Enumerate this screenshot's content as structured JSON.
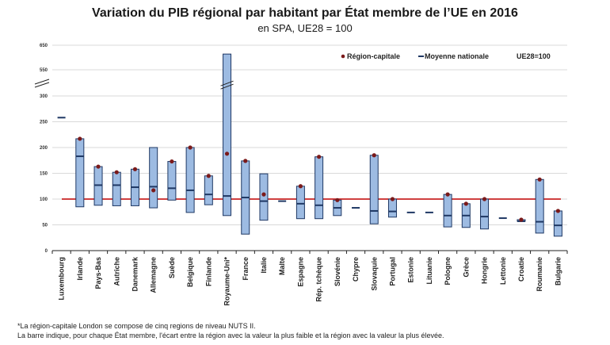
{
  "chart_data": {
    "type": "bar",
    "subtype": "range-bar",
    "title": "Variation du PIB régional par habitant par État membre de l’UE en 2016",
    "subtitle": "en SPA, UE28 = 100",
    "xlabel": "",
    "ylabel": "",
    "ylim": [
      0,
      650
    ],
    "axis_break": [
      300,
      550
    ],
    "y_ticks": [
      "0",
      "50",
      "100",
      "150",
      "200",
      "250",
      "300",
      "550",
      "650"
    ],
    "grid": true,
    "reference_line": {
      "value": 100,
      "color": "#c00000"
    },
    "legend": {
      "placement": "top-right",
      "items": [
        {
          "label": "Région-capitale",
          "symbol": "dot",
          "color": "#7b1a1a"
        },
        {
          "label": "Moyenne nationale",
          "symbol": "dash",
          "color": "#1f3864"
        },
        {
          "label": "UE28=100",
          "symbol": "none",
          "color": "#c00000"
        }
      ]
    },
    "categories": [
      "Luxembourg",
      "Irlande",
      "Pays-Bas",
      "Autriche",
      "Danemark",
      "Allemagne",
      "Suède",
      "Belgique",
      "Finlande",
      "Royaume-Uni*",
      "France",
      "Italie",
      "Malte",
      "Espagne",
      "Rép. tchèque",
      "Slovénie",
      "Chypre",
      "Slovaquie",
      "Portugal",
      "Estonie",
      "Lituanie",
      "Pologne",
      "Grèce",
      "Hongrie",
      "Lettonie",
      "Croatie",
      "Roumanie",
      "Bulgarie"
    ],
    "series": [
      {
        "name": "Min",
        "values": [
          null,
          85,
          88,
          87,
          87,
          83,
          98,
          74,
          89,
          68,
          32,
          59,
          null,
          62,
          62,
          68,
          null,
          52,
          65,
          null,
          null,
          46,
          45,
          42,
          null,
          57,
          34,
          28
        ]
      },
      {
        "name": "Max",
        "values": [
          null,
          217,
          163,
          152,
          158,
          200,
          173,
          200,
          145,
          614,
          174,
          149,
          null,
          125,
          182,
          98,
          null,
          185,
          100,
          null,
          null,
          109,
          91,
          100,
          null,
          60,
          138,
          77
        ]
      },
      {
        "name": "Moyenne nationale",
        "values": [
          258,
          183,
          127,
          127,
          123,
          124,
          121,
          117,
          109,
          106,
          103,
          96,
          96,
          91,
          88,
          83,
          83,
          77,
          76,
          74,
          74,
          68,
          68,
          66,
          63,
          57,
          56,
          49
        ]
      },
      {
        "name": "Région-capitale",
        "values": [
          null,
          217,
          163,
          152,
          158,
          117,
          173,
          200,
          145,
          188,
          174,
          109,
          null,
          125,
          182,
          98,
          null,
          185,
          100,
          null,
          null,
          109,
          91,
          100,
          null,
          60,
          138,
          77
        ]
      }
    ],
    "colors": {
      "bar_fill": "#9dbbe2",
      "bar_stroke": "#1f3864",
      "mean": "#1f3864",
      "capital": "#7b1a1a",
      "reference": "#c00000",
      "grid": "#d9d9d9"
    }
  },
  "footnotes": [
    "*La région-capitale London se compose de cinq regions de niveau NUTS II.",
    "La barre indique, pour chaque État membre, l'écart entre la région avec la valeur la plus faible et la région avec la valeur la plus élevée."
  ]
}
